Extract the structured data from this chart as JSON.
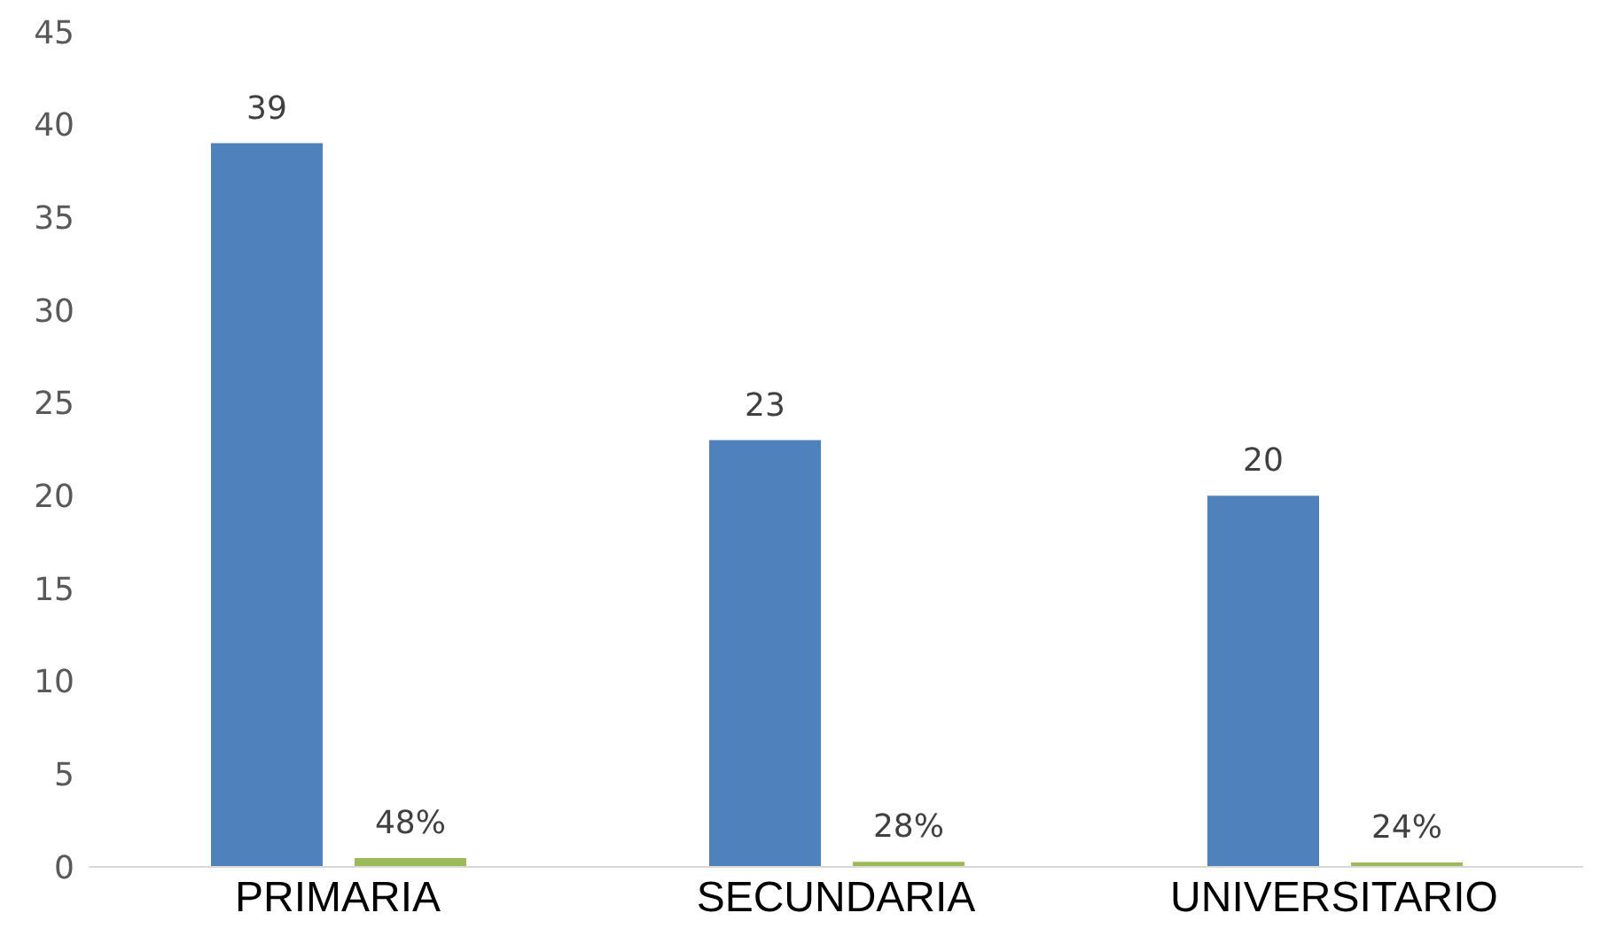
{
  "chart_data": {
    "type": "bar",
    "categories": [
      "PRIMARIA",
      "SECUNDARIA",
      "UNIVERSITARIO"
    ],
    "series": [
      {
        "color": "#4f81bd",
        "values": [
          39,
          23,
          20
        ],
        "value_labels": [
          "39",
          "23",
          "20"
        ]
      },
      {
        "color": "#9bbb59",
        "values": [
          0.48,
          0.28,
          0.24
        ],
        "value_labels": [
          "48%",
          "28%",
          "24%"
        ]
      }
    ],
    "ylim": [
      0,
      45
    ],
    "yticks": [
      0,
      5,
      10,
      15,
      20,
      25,
      30,
      35,
      40,
      45
    ],
    "grid": false,
    "legend": false
  }
}
